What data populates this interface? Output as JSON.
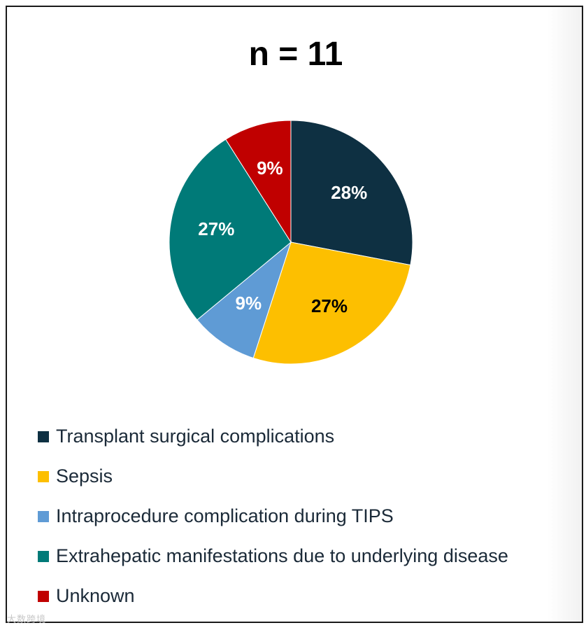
{
  "chart_data": {
    "type": "pie",
    "title": "n = 11",
    "categories": [
      "Transplant surgical complications",
      "Sepsis",
      "Intraprocedure complication during  TIPS",
      "Extrahepatic manifestations due to underlying disease",
      "Unknown"
    ],
    "values": [
      28,
      27,
      9,
      27,
      9
    ],
    "labels": [
      "28%",
      "27%",
      "9%",
      "27%",
      "9%"
    ],
    "colors": [
      "#0e3042",
      "#fdbf00",
      "#5f9bd5",
      "#007a78",
      "#c00000"
    ],
    "label_colors": [
      "#ffffff",
      "#000000",
      "#ffffff",
      "#ffffff",
      "#ffffff"
    ],
    "legend_position": "bottom"
  },
  "watermark": "大数跨境"
}
